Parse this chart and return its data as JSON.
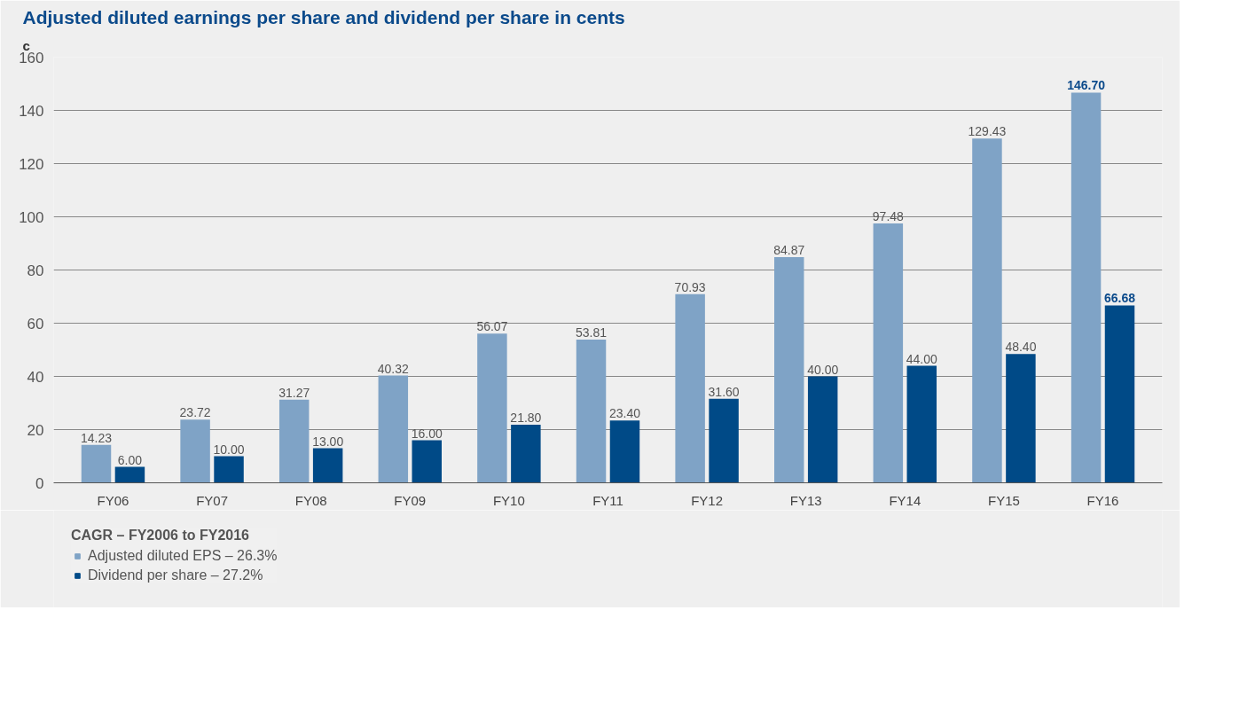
{
  "chart_data": {
    "type": "bar",
    "title": "Adjusted diluted earnings per share and dividend per share in cents",
    "ylabel": "c",
    "categories": [
      "FY06",
      "FY07",
      "FY08",
      "FY09",
      "FY10",
      "FY11",
      "FY12",
      "FY13",
      "FY14",
      "FY15",
      "FY16"
    ],
    "series": [
      {
        "name": "Adjusted diluted EPS – 26.3%",
        "color": "#7fa3c6",
        "values": [
          14.23,
          23.72,
          31.27,
          40.32,
          56.07,
          53.81,
          70.93,
          84.87,
          97.48,
          129.43,
          146.7
        ],
        "value_labels": [
          "14.23",
          "23.72",
          "31.27",
          "40.32",
          "56.07",
          "53.81",
          "70.93",
          "84.87",
          "97.48",
          "129.43",
          "146.70"
        ]
      },
      {
        "name": "Dividend per share – 27.2%",
        "color": "#004a87",
        "values": [
          6.0,
          10.0,
          13.0,
          16.0,
          21.8,
          23.4,
          31.6,
          40.0,
          44.0,
          48.4,
          66.68
        ],
        "value_labels": [
          "6.00",
          "10.00",
          "13.00",
          "16.00",
          "21.80",
          "23.40",
          "31.60",
          "40.00",
          "44.00",
          "48.40",
          "66.68"
        ]
      }
    ],
    "legend_title": "CAGR – FY2006 to FY2016",
    "ylim": [
      0,
      160
    ],
    "yticks": [
      0,
      20,
      40,
      60,
      80,
      100,
      120,
      140,
      160
    ],
    "grid": "y",
    "legend": "bottom left"
  }
}
